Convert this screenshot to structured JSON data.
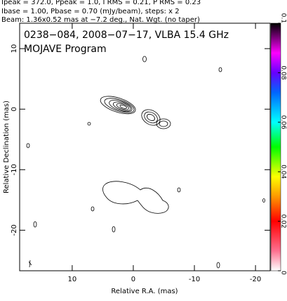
{
  "header": {
    "lines": [
      "Ipeak = 372.0, Ppeak = 1.0, I RMS = 0.21, P RMS = 0.23",
      "Ibase = 1.00, Pbase = 0.70 (mJy/beam), steps: x 2",
      "Beam: 1.36x0.52 mas at −7.2 deg., Nat. Wgt. (no taper)"
    ]
  },
  "chart_data": {
    "type": "contour",
    "title": "0238−084, 2008−07−17, VLBA 15.4 GHz",
    "subtitle": "MOJAVE Program",
    "xlabel": "Relative R.A. (mas)",
    "ylabel": "Relative Declination (mas)",
    "xlim": [
      18.6,
      -22.4
    ],
    "ylim": [
      -26.7,
      14.2
    ],
    "xticks": [
      10,
      0,
      -10,
      -20
    ],
    "yticks": [
      10,
      0,
      -10,
      -20
    ],
    "colorbar": {
      "lim": [
        0,
        0.1
      ],
      "ticks": [
        0,
        0.02,
        0.04,
        0.06,
        0.08,
        0.1
      ]
    }
  }
}
